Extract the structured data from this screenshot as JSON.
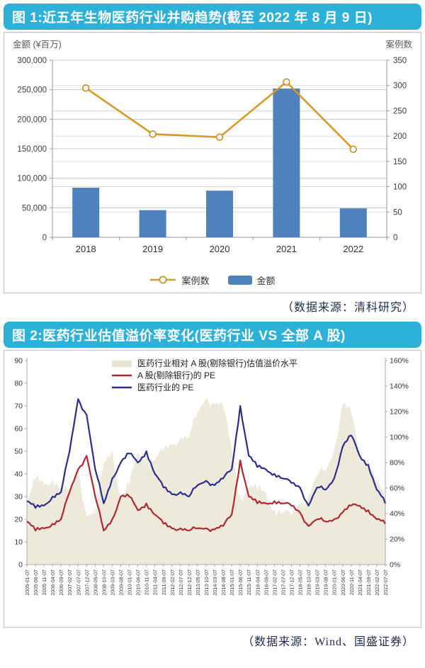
{
  "figure1": {
    "title": "图 1:近五年生物医药行业并购趋势(截至 2022 年 8 月 9 日)",
    "y_left_label": "金额 (¥百万)",
    "y_right_label": "案例数",
    "source": "（数据来源：清科研究）"
  },
  "figure2": {
    "title": "图 2:医药行业估值溢价率变化(医药行业 VS 全部 A 股)",
    "source": "（数据来源：Wind、国盛证券）"
  },
  "chart_data": [
    {
      "id": "merger-trend",
      "type": "bar",
      "title": "近五年生物医药行业并购趋势(截至2022年8月9日)",
      "categories": [
        "2018",
        "2019",
        "2020",
        "2021",
        "2022"
      ],
      "series": [
        {
          "name": "金额",
          "type": "bar",
          "axis": "left",
          "color": "#4f81bd",
          "values": [
            84000,
            46000,
            79000,
            252000,
            49000
          ]
        },
        {
          "name": "案例数",
          "type": "line",
          "axis": "right",
          "color": "#d79a28",
          "marker": "open-circle",
          "values": [
            295,
            204,
            198,
            307,
            174
          ]
        }
      ],
      "y_left": {
        "label": "金额 (¥百万)",
        "min": 0,
        "max": 300000,
        "step": 50000
      },
      "y_right": {
        "label": "案例数",
        "min": 0,
        "max": 350,
        "step": 50
      },
      "grid": true,
      "legend_position": "bottom",
      "source": "数据来源：清科研究"
    },
    {
      "id": "pe-premium",
      "type": "line",
      "title": "医药行业估值溢价率变化(医药行业 VS 全部A股)",
      "x": [
        "2005-01-07",
        "2005-06-07",
        "2005-11-07",
        "2006-04-07",
        "2006-09-07",
        "2007-02-07",
        "2007-07-07",
        "2007-12-07",
        "2008-05-07",
        "2008-10-07",
        "2009-03-07",
        "2009-08-07",
        "2010-01-07",
        "2010-06-07",
        "2010-11-07",
        "2011-04-07",
        "2011-09-07",
        "2012-02-07",
        "2012-07-07",
        "2012-12-07",
        "2013-05-07",
        "2013-10-07",
        "2014-03-07",
        "2014-08-07",
        "2015-01-07",
        "2015-06-07",
        "2015-11-07",
        "2016-04-07",
        "2016-09-07",
        "2017-02-07",
        "2017-07-07",
        "2017-12-07",
        "2018-05-07",
        "2018-10-07",
        "2019-03-07",
        "2019-08-07",
        "2020-01-07",
        "2020-06-07",
        "2020-11-07",
        "2021-04-07",
        "2021-09-07",
        "2022-02-07",
        "2022-07-07"
      ],
      "series": [
        {
          "name": "医药行业相对 A 股(剔除银行)估值溢价水平",
          "type": "area",
          "axis": "right",
          "color": "#edeadb",
          "values": [
            47,
            67,
            63,
            67,
            60,
            56,
            74,
            38,
            40,
            80,
            90,
            50,
            63,
            88,
            85,
            82,
            89,
            94,
            100,
            100,
            119,
            131,
            126,
            124,
            91,
            52,
            60,
            59,
            56,
            43,
            41,
            38,
            48,
            53,
            70,
            74,
            90,
            126,
            119,
            85,
            83,
            65,
            50
          ]
        },
        {
          "name": "A 股(剔除银行)的 PE",
          "type": "line",
          "axis": "left",
          "color": "#b02730",
          "values": [
            19,
            15,
            16,
            18,
            20,
            32,
            42,
            48,
            30,
            15,
            20,
            30,
            30,
            24,
            27,
            22,
            18,
            16,
            16,
            15,
            16,
            16,
            15.5,
            17,
            22,
            46,
            30,
            27,
            27,
            28,
            27,
            26,
            23,
            17,
            20,
            19,
            20,
            23,
            26,
            26,
            24,
            20,
            18
          ]
        },
        {
          "name": "医药行业的 PE",
          "type": "line",
          "axis": "left",
          "color": "#2b2e8c",
          "values": [
            28,
            25,
            26,
            30,
            32,
            50,
            73,
            66,
            42,
            27,
            38,
            45,
            49,
            45,
            50,
            40,
            34,
            31,
            32,
            30,
            35,
            37,
            35,
            38,
            42,
            70,
            48,
            43,
            42,
            40,
            38,
            36,
            34,
            26,
            34,
            33,
            38,
            52,
            57,
            48,
            44,
            33,
            27
          ]
        }
      ],
      "y_left": {
        "min": 0,
        "max": 90,
        "step": 10
      },
      "y_right": {
        "min": 0,
        "max": 160,
        "step": 20,
        "suffix": "%"
      },
      "grid": false,
      "legend_position": "top",
      "source": "数据来源：Wind、国盛证券"
    }
  ]
}
